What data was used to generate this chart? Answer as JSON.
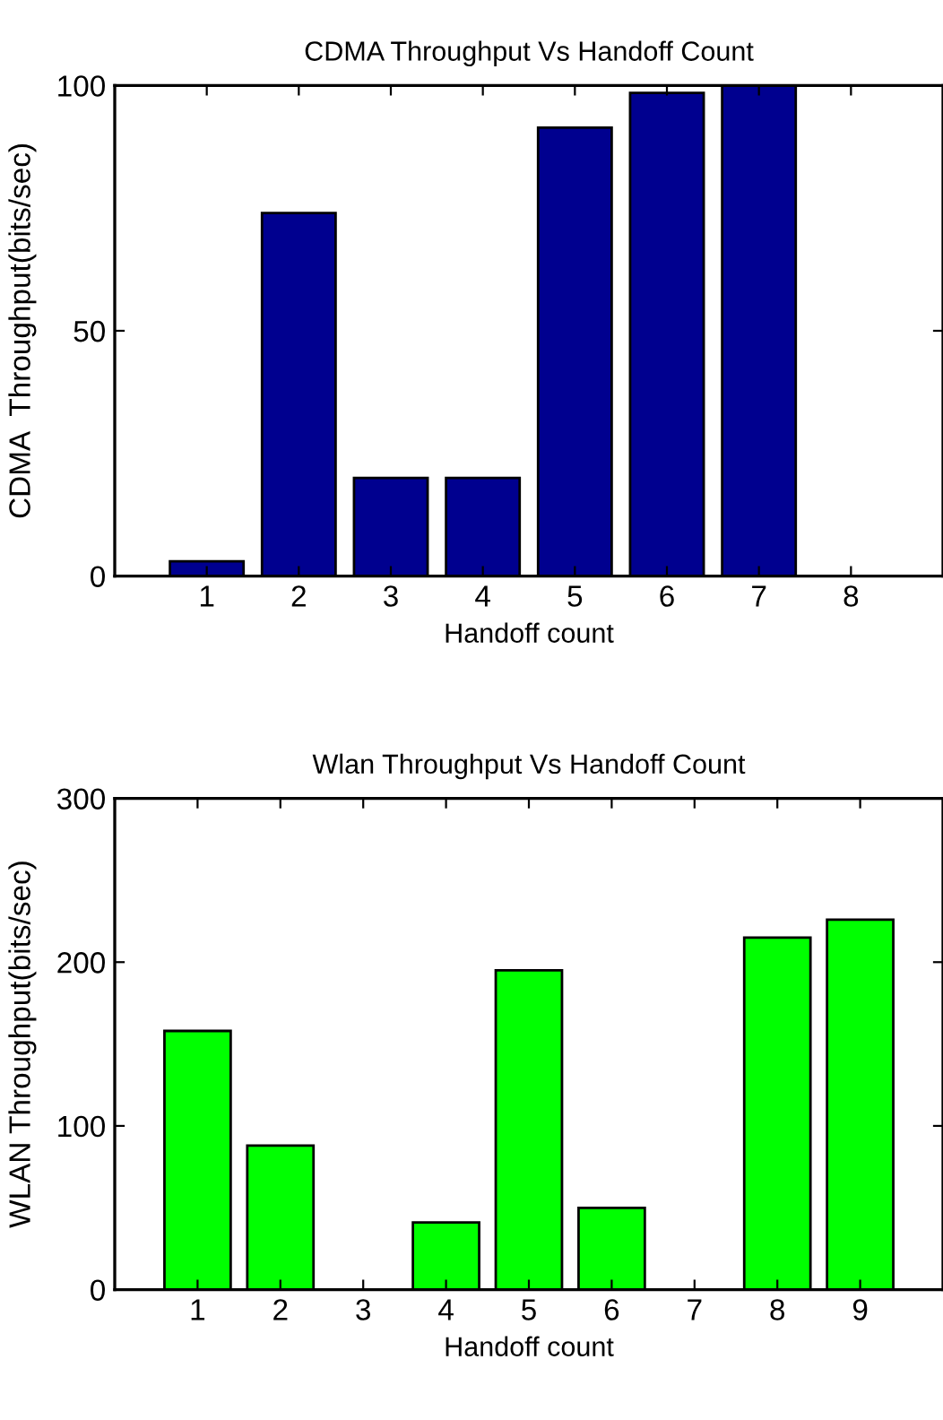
{
  "chart_data": [
    {
      "type": "bar",
      "title": "CDMA Throughput Vs Handoff Count",
      "xlabel": "Handoff count",
      "ylabel": "CDMA  Throughput(bits/sec)",
      "x": [
        1,
        2,
        3,
        4,
        5,
        6,
        7,
        8
      ],
      "values": [
        3,
        74,
        20,
        20,
        91.4,
        98.5,
        100,
        0
      ],
      "color": "#00008f",
      "xlim": [
        0,
        9
      ],
      "xticks": [
        1,
        2,
        3,
        4,
        5,
        6,
        7,
        8
      ],
      "ylim": [
        0,
        100
      ],
      "yticks": [
        0,
        50,
        100
      ],
      "grid": false,
      "legend": false
    },
    {
      "type": "bar",
      "title": "Wlan Throughput Vs Handoff Count",
      "xlabel": "Handoff count",
      "ylabel": "WLAN Throughput(bits/sec)",
      "x": [
        1,
        2,
        3,
        4,
        5,
        6,
        7,
        8,
        9
      ],
      "values": [
        158,
        88,
        0,
        41,
        195,
        50,
        0,
        215,
        226
      ],
      "color": "#00ff00",
      "xlim": [
        0,
        10
      ],
      "xticks": [
        1,
        2,
        3,
        4,
        5,
        6,
        7,
        8,
        9
      ],
      "ylim": [
        0,
        300
      ],
      "yticks": [
        0,
        100,
        200,
        300
      ],
      "grid": false,
      "legend": false
    }
  ]
}
